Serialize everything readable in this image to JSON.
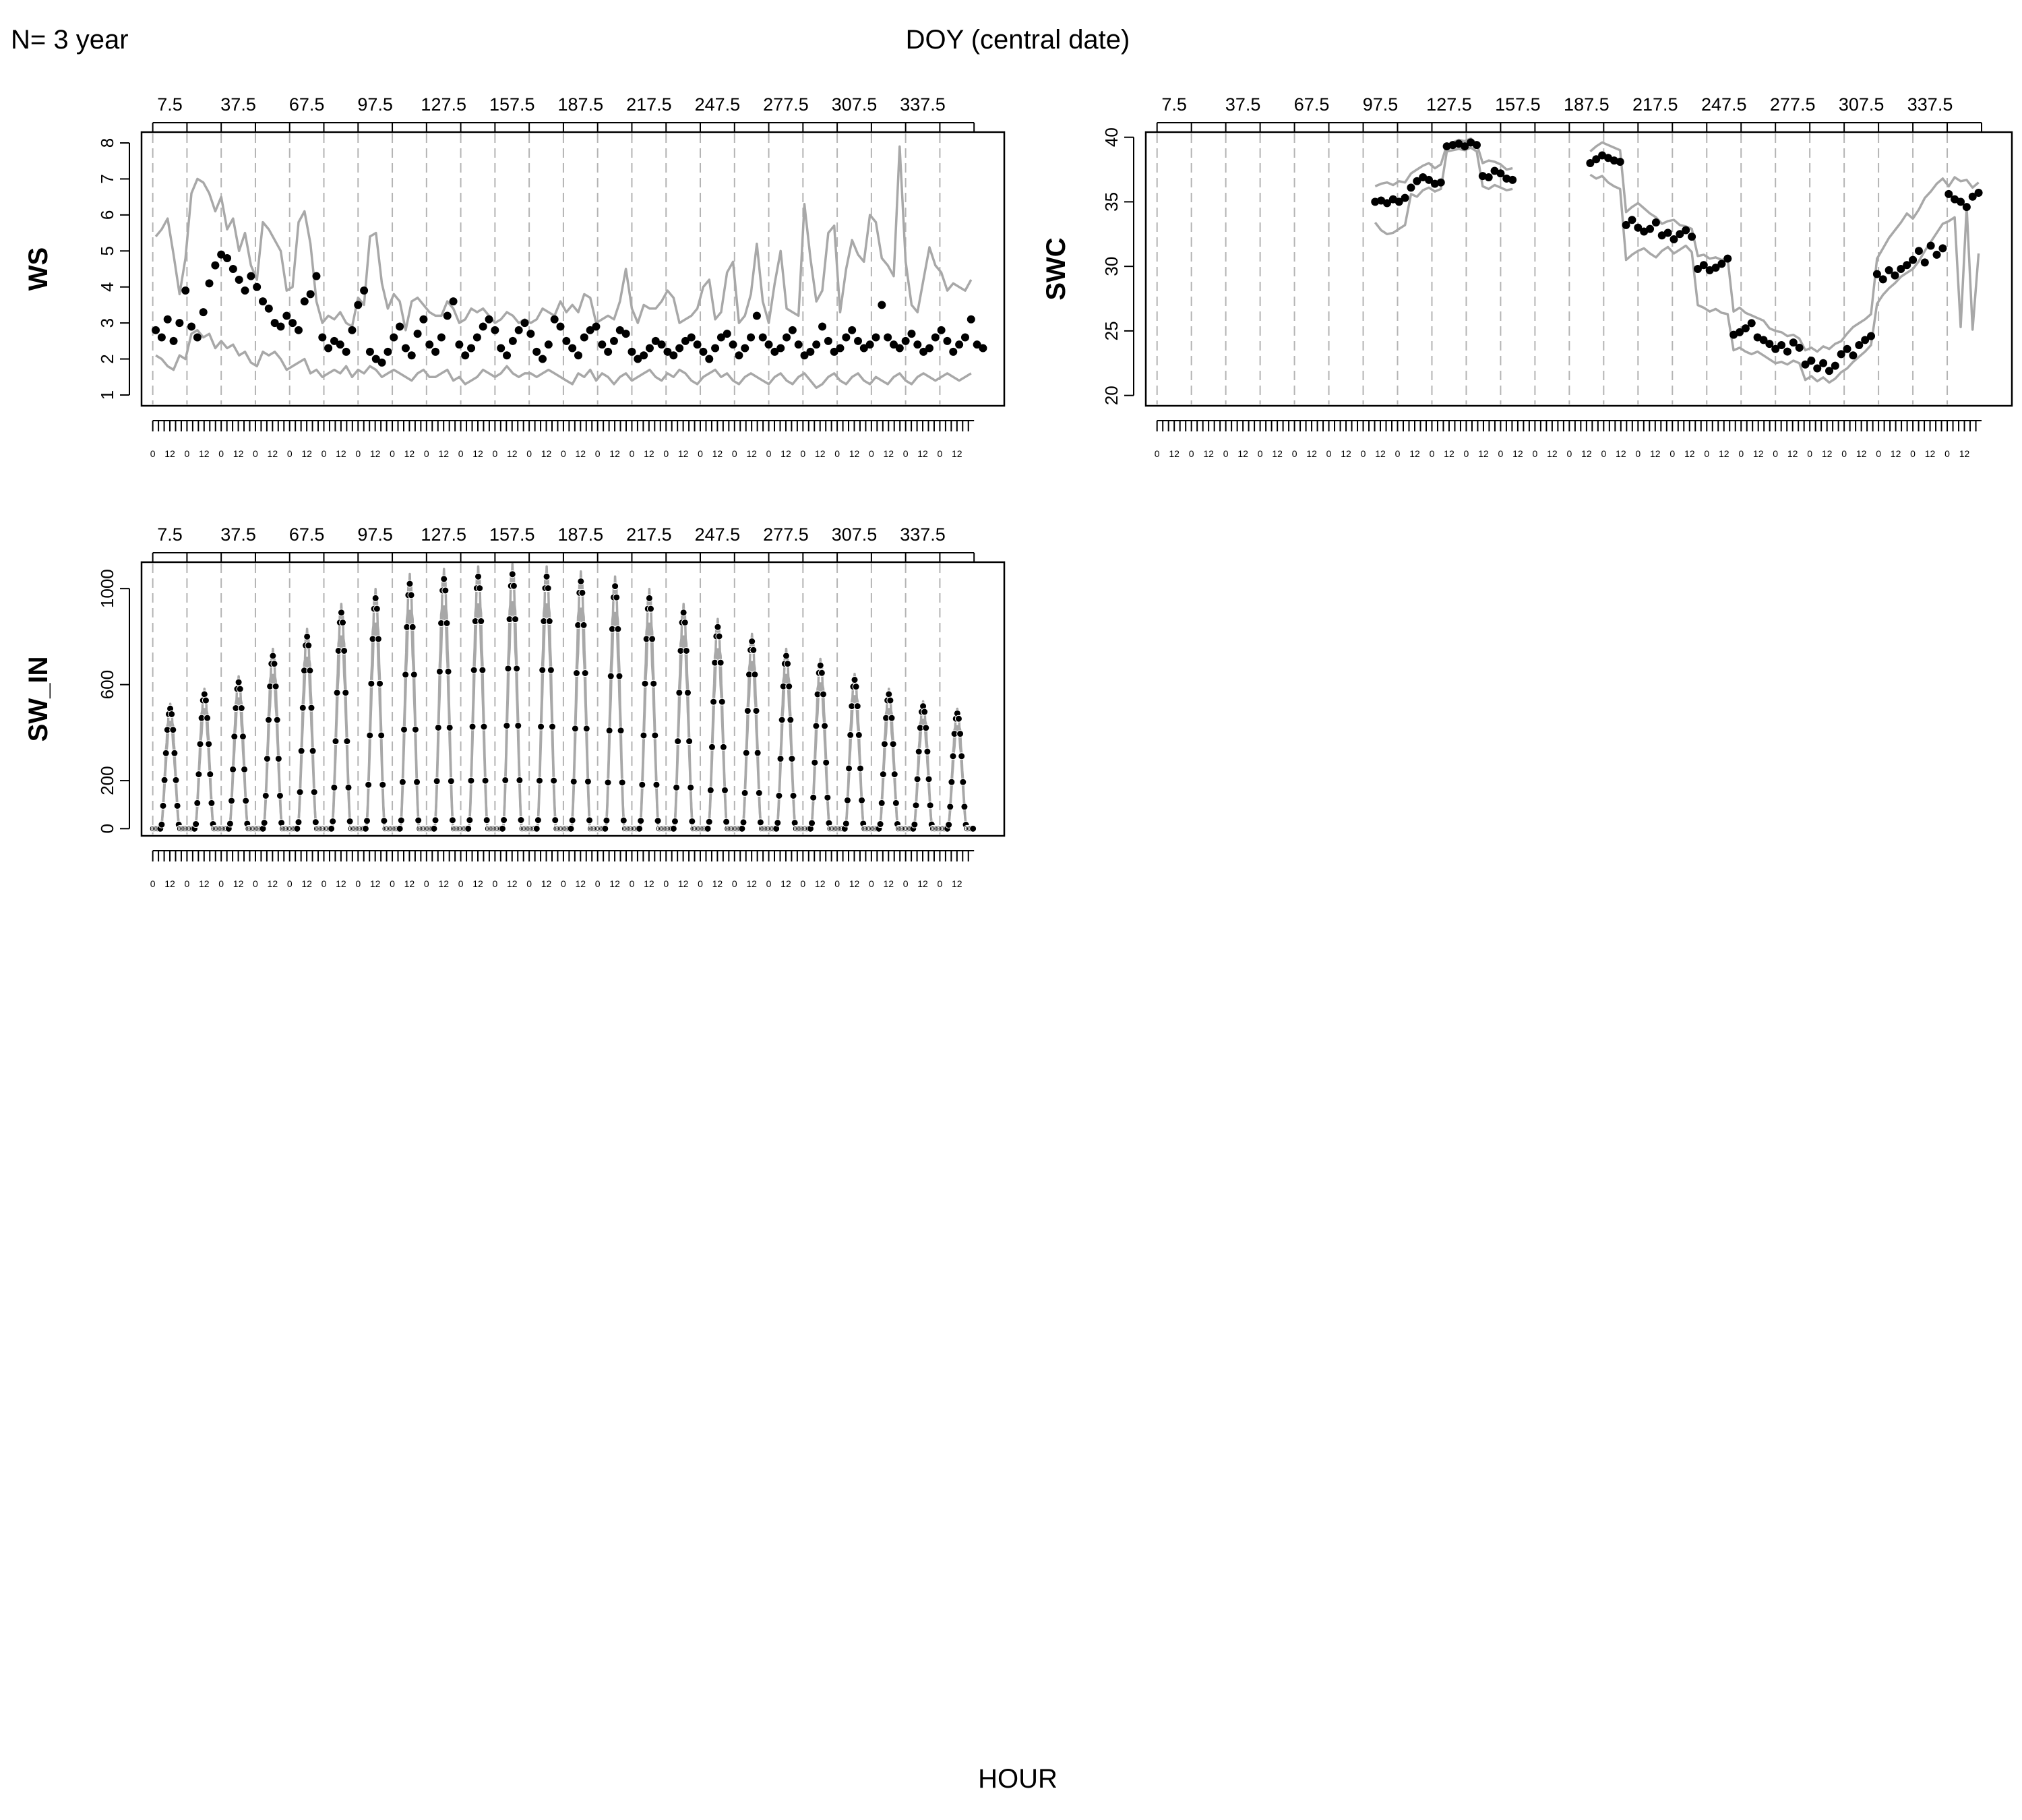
{
  "figure": {
    "header_left": "N= 3 year",
    "header_center": "DOY (central date)",
    "footer_center": "HOUR"
  },
  "colors": {
    "band": "#a8a8a8",
    "point": "#000000",
    "divider": "#b4b4b4",
    "axis": "#000000"
  },
  "chart_data": [
    {
      "type": "line",
      "panel": "WS",
      "ylabel": "WS",
      "top_axis_labels": [
        "7.5",
        "37.5",
        "67.5",
        "97.5",
        "127.5",
        "157.5",
        "187.5",
        "217.5",
        "247.5",
        "277.5",
        "307.5",
        "337.5"
      ],
      "hour_tick_labels": [
        "0",
        "12"
      ],
      "n_days": 24,
      "ylim": [
        0.7,
        8.3
      ],
      "yticks": [
        1,
        2,
        3,
        4,
        5,
        6,
        7,
        8
      ],
      "series": [
        {
          "name": "",
          "role": "upper",
          "values": [
            5.4,
            5.6,
            5.9,
            4.9,
            3.8,
            4.8,
            6.6,
            7.0,
            6.9,
            6.6,
            6.1,
            6.5,
            5.6,
            5.9,
            5.0,
            5.5,
            4.6,
            4.2,
            5.8,
            5.6,
            5.3,
            5.0,
            3.9,
            4.0,
            5.8,
            6.1,
            5.2,
            3.6,
            3.0,
            3.2,
            3.1,
            3.3,
            3.0,
            2.9,
            3.7,
            3.5,
            5.4,
            5.5,
            4.1,
            3.4,
            3.8,
            3.6,
            2.8,
            3.6,
            3.7,
            3.5,
            3.3,
            3.2,
            3.2,
            3.6,
            3.4,
            3.0,
            3.1,
            3.4,
            3.3,
            3.4,
            3.2,
            3.0,
            3.1,
            3.3,
            3.2,
            3.0,
            3.1,
            3.0,
            3.1,
            3.4,
            3.3,
            3.2,
            3.6,
            3.3,
            3.5,
            3.3,
            3.8,
            3.7,
            3.0,
            3.1,
            3.2,
            3.1,
            3.6,
            4.5,
            3.4,
            3.0,
            3.5,
            3.4,
            3.4,
            3.6,
            3.9,
            3.7,
            3.0,
            3.1,
            3.2,
            3.4,
            4.0,
            4.2,
            3.1,
            3.3,
            4.4,
            4.7,
            3.0,
            3.2,
            3.8,
            5.2,
            3.6,
            3.0,
            4.1,
            5.0,
            3.4,
            3.3,
            3.2,
            6.3,
            4.8,
            3.6,
            3.9,
            5.5,
            5.7,
            3.3,
            4.5,
            5.3,
            4.9,
            4.7,
            6.0,
            5.8,
            4.8,
            4.6,
            4.3,
            7.9,
            4.7,
            3.5,
            3.3,
            4.2,
            5.1,
            4.6,
            4.4,
            3.9,
            4.1,
            4.0,
            3.9,
            4.2
          ]
        },
        {
          "name": "",
          "role": "lower",
          "values": [
            2.1,
            2.0,
            1.8,
            1.7,
            2.1,
            2.0,
            2.7,
            2.8,
            2.6,
            2.7,
            2.3,
            2.5,
            2.3,
            2.4,
            2.1,
            2.2,
            1.9,
            1.8,
            2.2,
            2.1,
            2.2,
            2.0,
            1.7,
            1.8,
            1.9,
            2.0,
            1.6,
            1.7,
            1.5,
            1.6,
            1.7,
            1.6,
            1.8,
            1.5,
            1.7,
            1.6,
            1.8,
            1.7,
            1.5,
            1.6,
            1.7,
            1.6,
            1.5,
            1.4,
            1.6,
            1.7,
            1.5,
            1.5,
            1.6,
            1.7,
            1.4,
            1.5,
            1.3,
            1.4,
            1.5,
            1.7,
            1.6,
            1.5,
            1.6,
            1.8,
            1.6,
            1.5,
            1.6,
            1.6,
            1.5,
            1.6,
            1.7,
            1.6,
            1.5,
            1.4,
            1.3,
            1.6,
            1.5,
            1.7,
            1.4,
            1.6,
            1.5,
            1.3,
            1.5,
            1.6,
            1.4,
            1.5,
            1.6,
            1.7,
            1.5,
            1.4,
            1.6,
            1.5,
            1.7,
            1.6,
            1.4,
            1.3,
            1.5,
            1.6,
            1.7,
            1.5,
            1.6,
            1.4,
            1.3,
            1.5,
            1.6,
            1.5,
            1.4,
            1.3,
            1.5,
            1.6,
            1.4,
            1.3,
            1.5,
            1.6,
            1.4,
            1.2,
            1.3,
            1.5,
            1.6,
            1.4,
            1.3,
            1.5,
            1.6,
            1.4,
            1.3,
            1.5,
            1.4,
            1.3,
            1.5,
            1.6,
            1.4,
            1.3,
            1.5,
            1.6,
            1.5,
            1.4,
            1.5,
            1.6,
            1.5,
            1.4,
            1.5,
            1.6
          ]
        },
        {
          "name": "",
          "role": "median-points",
          "values": [
            2.8,
            2.6,
            3.1,
            2.5,
            3.0,
            3.9,
            2.9,
            2.6,
            3.3,
            4.1,
            4.6,
            4.9,
            4.8,
            4.5,
            4.2,
            3.9,
            4.3,
            4.0,
            3.6,
            3.4,
            3.0,
            2.9,
            3.2,
            3.0,
            2.8,
            3.6,
            3.8,
            4.3,
            2.6,
            2.3,
            2.5,
            2.4,
            2.2,
            2.8,
            3.5,
            3.9,
            2.2,
            2.0,
            1.9,
            2.2,
            2.6,
            2.9,
            2.3,
            2.1,
            2.7,
            3.1,
            2.4,
            2.2,
            2.6,
            3.2,
            3.6,
            2.4,
            2.1,
            2.3,
            2.6,
            2.9,
            3.1,
            2.8,
            2.3,
            2.1,
            2.5,
            2.8,
            3.0,
            2.7,
            2.2,
            2.0,
            2.4,
            3.1,
            2.9,
            2.5,
            2.3,
            2.1,
            2.6,
            2.8,
            2.9,
            2.4,
            2.2,
            2.5,
            2.8,
            2.7,
            2.2,
            2.0,
            2.1,
            2.3,
            2.5,
            2.4,
            2.2,
            2.1,
            2.3,
            2.5,
            2.6,
            2.4,
            2.2,
            2.0,
            2.3,
            2.6,
            2.7,
            2.4,
            2.1,
            2.3,
            2.6,
            3.2,
            2.6,
            2.4,
            2.2,
            2.3,
            2.6,
            2.8,
            2.4,
            2.1,
            2.2,
            2.4,
            2.9,
            2.5,
            2.2,
            2.3,
            2.6,
            2.8,
            2.5,
            2.3,
            2.4,
            2.6,
            3.5,
            2.6,
            2.4,
            2.3,
            2.5,
            2.7,
            2.4,
            2.2,
            2.3,
            2.6,
            2.8,
            2.5,
            2.2,
            2.4,
            2.6,
            3.1,
            2.4,
            2.3
          ]
        }
      ]
    },
    {
      "type": "line",
      "panel": "SWC",
      "ylabel": "SWC",
      "top_axis_labels": [
        "7.5",
        "37.5",
        "67.5",
        "97.5",
        "127.5",
        "157.5",
        "187.5",
        "217.5",
        "247.5",
        "277.5",
        "307.5",
        "337.5"
      ],
      "hour_tick_labels": [
        "0",
        "12"
      ],
      "n_days": 24,
      "ylim": [
        19.2,
        40.4
      ],
      "yticks": [
        20,
        25,
        30,
        35,
        40
      ],
      "series": [
        {
          "name": "",
          "role": "upper",
          "values": [
            null,
            null,
            null,
            null,
            null,
            null,
            null,
            null,
            null,
            null,
            null,
            null,
            null,
            null,
            null,
            null,
            null,
            null,
            null,
            null,
            null,
            null,
            null,
            null,
            null,
            null,
            null,
            null,
            null,
            null,
            null,
            null,
            null,
            null,
            null,
            null,
            36.2,
            36.4,
            36.5,
            36.3,
            36.6,
            36.5,
            37.2,
            37.5,
            37.8,
            38.0,
            37.6,
            37.9,
            39.4,
            39.6,
            39.8,
            39.7,
            39.9,
            39.5,
            38.0,
            38.2,
            38.1,
            37.9,
            37.5,
            37.6,
            null,
            null,
            null,
            null,
            null,
            null,
            null,
            null,
            null,
            null,
            null,
            null,
            38.9,
            39.3,
            39.6,
            39.4,
            39.2,
            39.0,
            34.2,
            34.6,
            34.9,
            34.5,
            34.1,
            33.8,
            33.3,
            33.5,
            33.6,
            33.2,
            33.1,
            32.9,
            30.8,
            30.9,
            30.6,
            30.7,
            30.5,
            30.6,
            26.5,
            26.8,
            26.4,
            26.2,
            26.0,
            25.8,
            25.2,
            25.0,
            24.9,
            24.6,
            24.7,
            24.4,
            23.5,
            23.7,
            23.4,
            23.8,
            23.6,
            24.0,
            24.2,
            24.8,
            25.3,
            25.6,
            25.9,
            26.3,
            30.6,
            31.4,
            32.2,
            32.8,
            33.4,
            34.1,
            33.7,
            34.4,
            35.3,
            35.8,
            36.4,
            36.8,
            36.2,
            36.9,
            36.6,
            36.7,
            36.1,
            36.5
          ]
        },
        {
          "name": "",
          "role": "lower",
          "values": [
            null,
            null,
            null,
            null,
            null,
            null,
            null,
            null,
            null,
            null,
            null,
            null,
            null,
            null,
            null,
            null,
            null,
            null,
            null,
            null,
            null,
            null,
            null,
            null,
            null,
            null,
            null,
            null,
            null,
            null,
            null,
            null,
            null,
            null,
            null,
            null,
            33.4,
            32.8,
            32.5,
            32.6,
            32.9,
            33.2,
            35.6,
            35.4,
            35.9,
            36.1,
            35.8,
            36.0,
            38.9,
            39.0,
            39.1,
            39.0,
            39.2,
            38.9,
            36.2,
            36.0,
            36.3,
            36.1,
            35.9,
            36.0,
            null,
            null,
            null,
            null,
            null,
            null,
            null,
            null,
            null,
            null,
            null,
            null,
            37.1,
            36.8,
            37.0,
            36.5,
            36.2,
            36.0,
            30.5,
            30.9,
            31.2,
            31.4,
            31.0,
            30.7,
            31.2,
            31.5,
            31.0,
            31.3,
            31.6,
            31.1,
            27.0,
            26.8,
            26.5,
            26.7,
            26.4,
            26.3,
            23.5,
            23.7,
            23.4,
            23.2,
            23.4,
            23.1,
            22.8,
            22.5,
            22.6,
            22.4,
            22.7,
            22.5,
            21.2,
            21.5,
            21.1,
            21.4,
            21.0,
            21.3,
            21.8,
            22.1,
            22.6,
            23.0,
            23.4,
            23.9,
            27.1,
            27.8,
            28.3,
            28.7,
            29.2,
            29.5,
            29.8,
            30.4,
            31.2,
            31.9,
            32.6,
            33.3,
            33.5,
            33.8,
            25.3,
            34.6,
            25.1,
            31.0
          ]
        },
        {
          "name": "",
          "role": "median-points",
          "values": [
            null,
            null,
            null,
            null,
            null,
            null,
            null,
            null,
            null,
            null,
            null,
            null,
            null,
            null,
            null,
            null,
            null,
            null,
            null,
            null,
            null,
            null,
            null,
            null,
            null,
            null,
            null,
            null,
            null,
            null,
            null,
            null,
            null,
            null,
            null,
            null,
            35.0,
            35.1,
            34.9,
            35.2,
            35.0,
            35.3,
            36.1,
            36.6,
            36.9,
            36.7,
            36.4,
            36.5,
            39.3,
            39.4,
            39.5,
            39.3,
            39.6,
            39.4,
            37.0,
            36.9,
            37.4,
            37.2,
            36.8,
            36.7,
            null,
            null,
            null,
            null,
            null,
            null,
            null,
            null,
            null,
            null,
            null,
            null,
            38.0,
            38.3,
            38.6,
            38.4,
            38.2,
            38.1,
            33.2,
            33.6,
            33.0,
            32.7,
            32.9,
            33.4,
            32.4,
            32.6,
            32.1,
            32.5,
            32.8,
            32.3,
            29.8,
            30.1,
            29.7,
            29.9,
            30.2,
            30.6,
            24.7,
            24.9,
            25.2,
            25.6,
            24.5,
            24.3,
            24.0,
            23.6,
            23.9,
            23.4,
            24.1,
            23.7,
            22.4,
            22.7,
            22.1,
            22.5,
            21.9,
            22.3,
            23.2,
            23.6,
            23.1,
            23.9,
            24.3,
            24.6,
            29.4,
            29.0,
            29.7,
            29.3,
            29.8,
            30.1,
            30.5,
            31.2,
            30.3,
            31.6,
            30.9,
            31.4,
            35.6,
            35.2,
            35.0,
            34.6,
            35.4,
            35.7
          ]
        }
      ]
    },
    {
      "type": "line",
      "panel": "SW_IN",
      "ylabel": "SW_IN",
      "top_axis_labels": [
        "7.5",
        "37.5",
        "67.5",
        "97.5",
        "127.5",
        "157.5",
        "187.5",
        "217.5",
        "247.5",
        "277.5",
        "307.5",
        "337.5"
      ],
      "hour_tick_labels": [
        "0",
        "12"
      ],
      "n_days": 24,
      "ylim": [
        -30,
        1110
      ],
      "yticks": [
        0,
        200,
        600,
        1000
      ],
      "peak_values": [
        500,
        560,
        610,
        720,
        800,
        900,
        960,
        1020,
        1040,
        1050,
        1060,
        1050,
        1030,
        1010,
        960,
        900,
        840,
        780,
        720,
        680,
        620,
        560,
        510,
        480
      ]
    }
  ]
}
